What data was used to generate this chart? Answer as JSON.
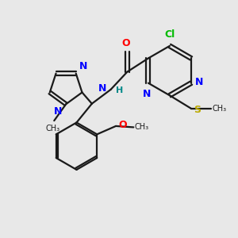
{
  "bg_color": "#e8e8e8",
  "bond_color": "#1a1a1a",
  "cl_color": "#00bb00",
  "n_color": "#0000ff",
  "o_color": "#ff0000",
  "s_color": "#bbaa00",
  "nh_color": "#008888",
  "figsize": [
    3.0,
    3.0
  ],
  "dpi": 100,
  "xlim": [
    0,
    10
  ],
  "ylim": [
    0,
    10
  ]
}
